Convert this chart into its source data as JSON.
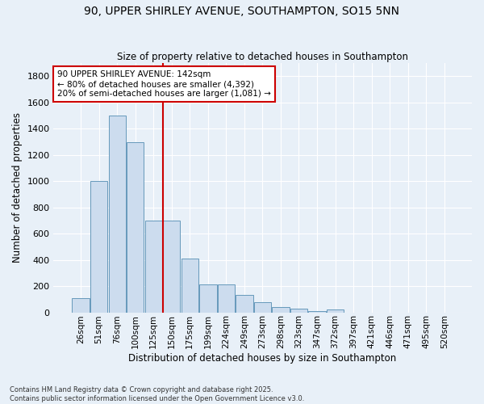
{
  "title": "90, UPPER SHIRLEY AVENUE, SOUTHAMPTON, SO15 5NN",
  "subtitle": "Size of property relative to detached houses in Southampton",
  "xlabel": "Distribution of detached houses by size in Southampton",
  "ylabel": "Number of detached properties",
  "categories": [
    "26sqm",
    "51sqm",
    "76sqm",
    "100sqm",
    "125sqm",
    "150sqm",
    "175sqm",
    "199sqm",
    "224sqm",
    "249sqm",
    "273sqm",
    "298sqm",
    "323sqm",
    "347sqm",
    "372sqm",
    "397sqm",
    "421sqm",
    "446sqm",
    "471sqm",
    "495sqm",
    "520sqm"
  ],
  "values": [
    110,
    1000,
    1500,
    1300,
    700,
    700,
    410,
    215,
    215,
    130,
    75,
    40,
    25,
    10,
    20,
    0,
    0,
    0,
    0,
    0,
    0
  ],
  "bar_color": "#ccdcee",
  "bar_edge_color": "#6699bb",
  "bg_color": "#e8f0f8",
  "grid_color": "#ffffff",
  "vline_x": 4.5,
  "vline_color": "#cc0000",
  "annotation_text": "90 UPPER SHIRLEY AVENUE: 142sqm\n← 80% of detached houses are smaller (4,392)\n20% of semi-detached houses are larger (1,081) →",
  "annotation_box_color": "#ffffff",
  "annotation_box_edge": "#cc0000",
  "footer": "Contains HM Land Registry data © Crown copyright and database right 2025.\nContains public sector information licensed under the Open Government Licence v3.0.",
  "ylim": [
    0,
    1900
  ],
  "yticks": [
    0,
    200,
    400,
    600,
    800,
    1000,
    1200,
    1400,
    1600,
    1800
  ]
}
